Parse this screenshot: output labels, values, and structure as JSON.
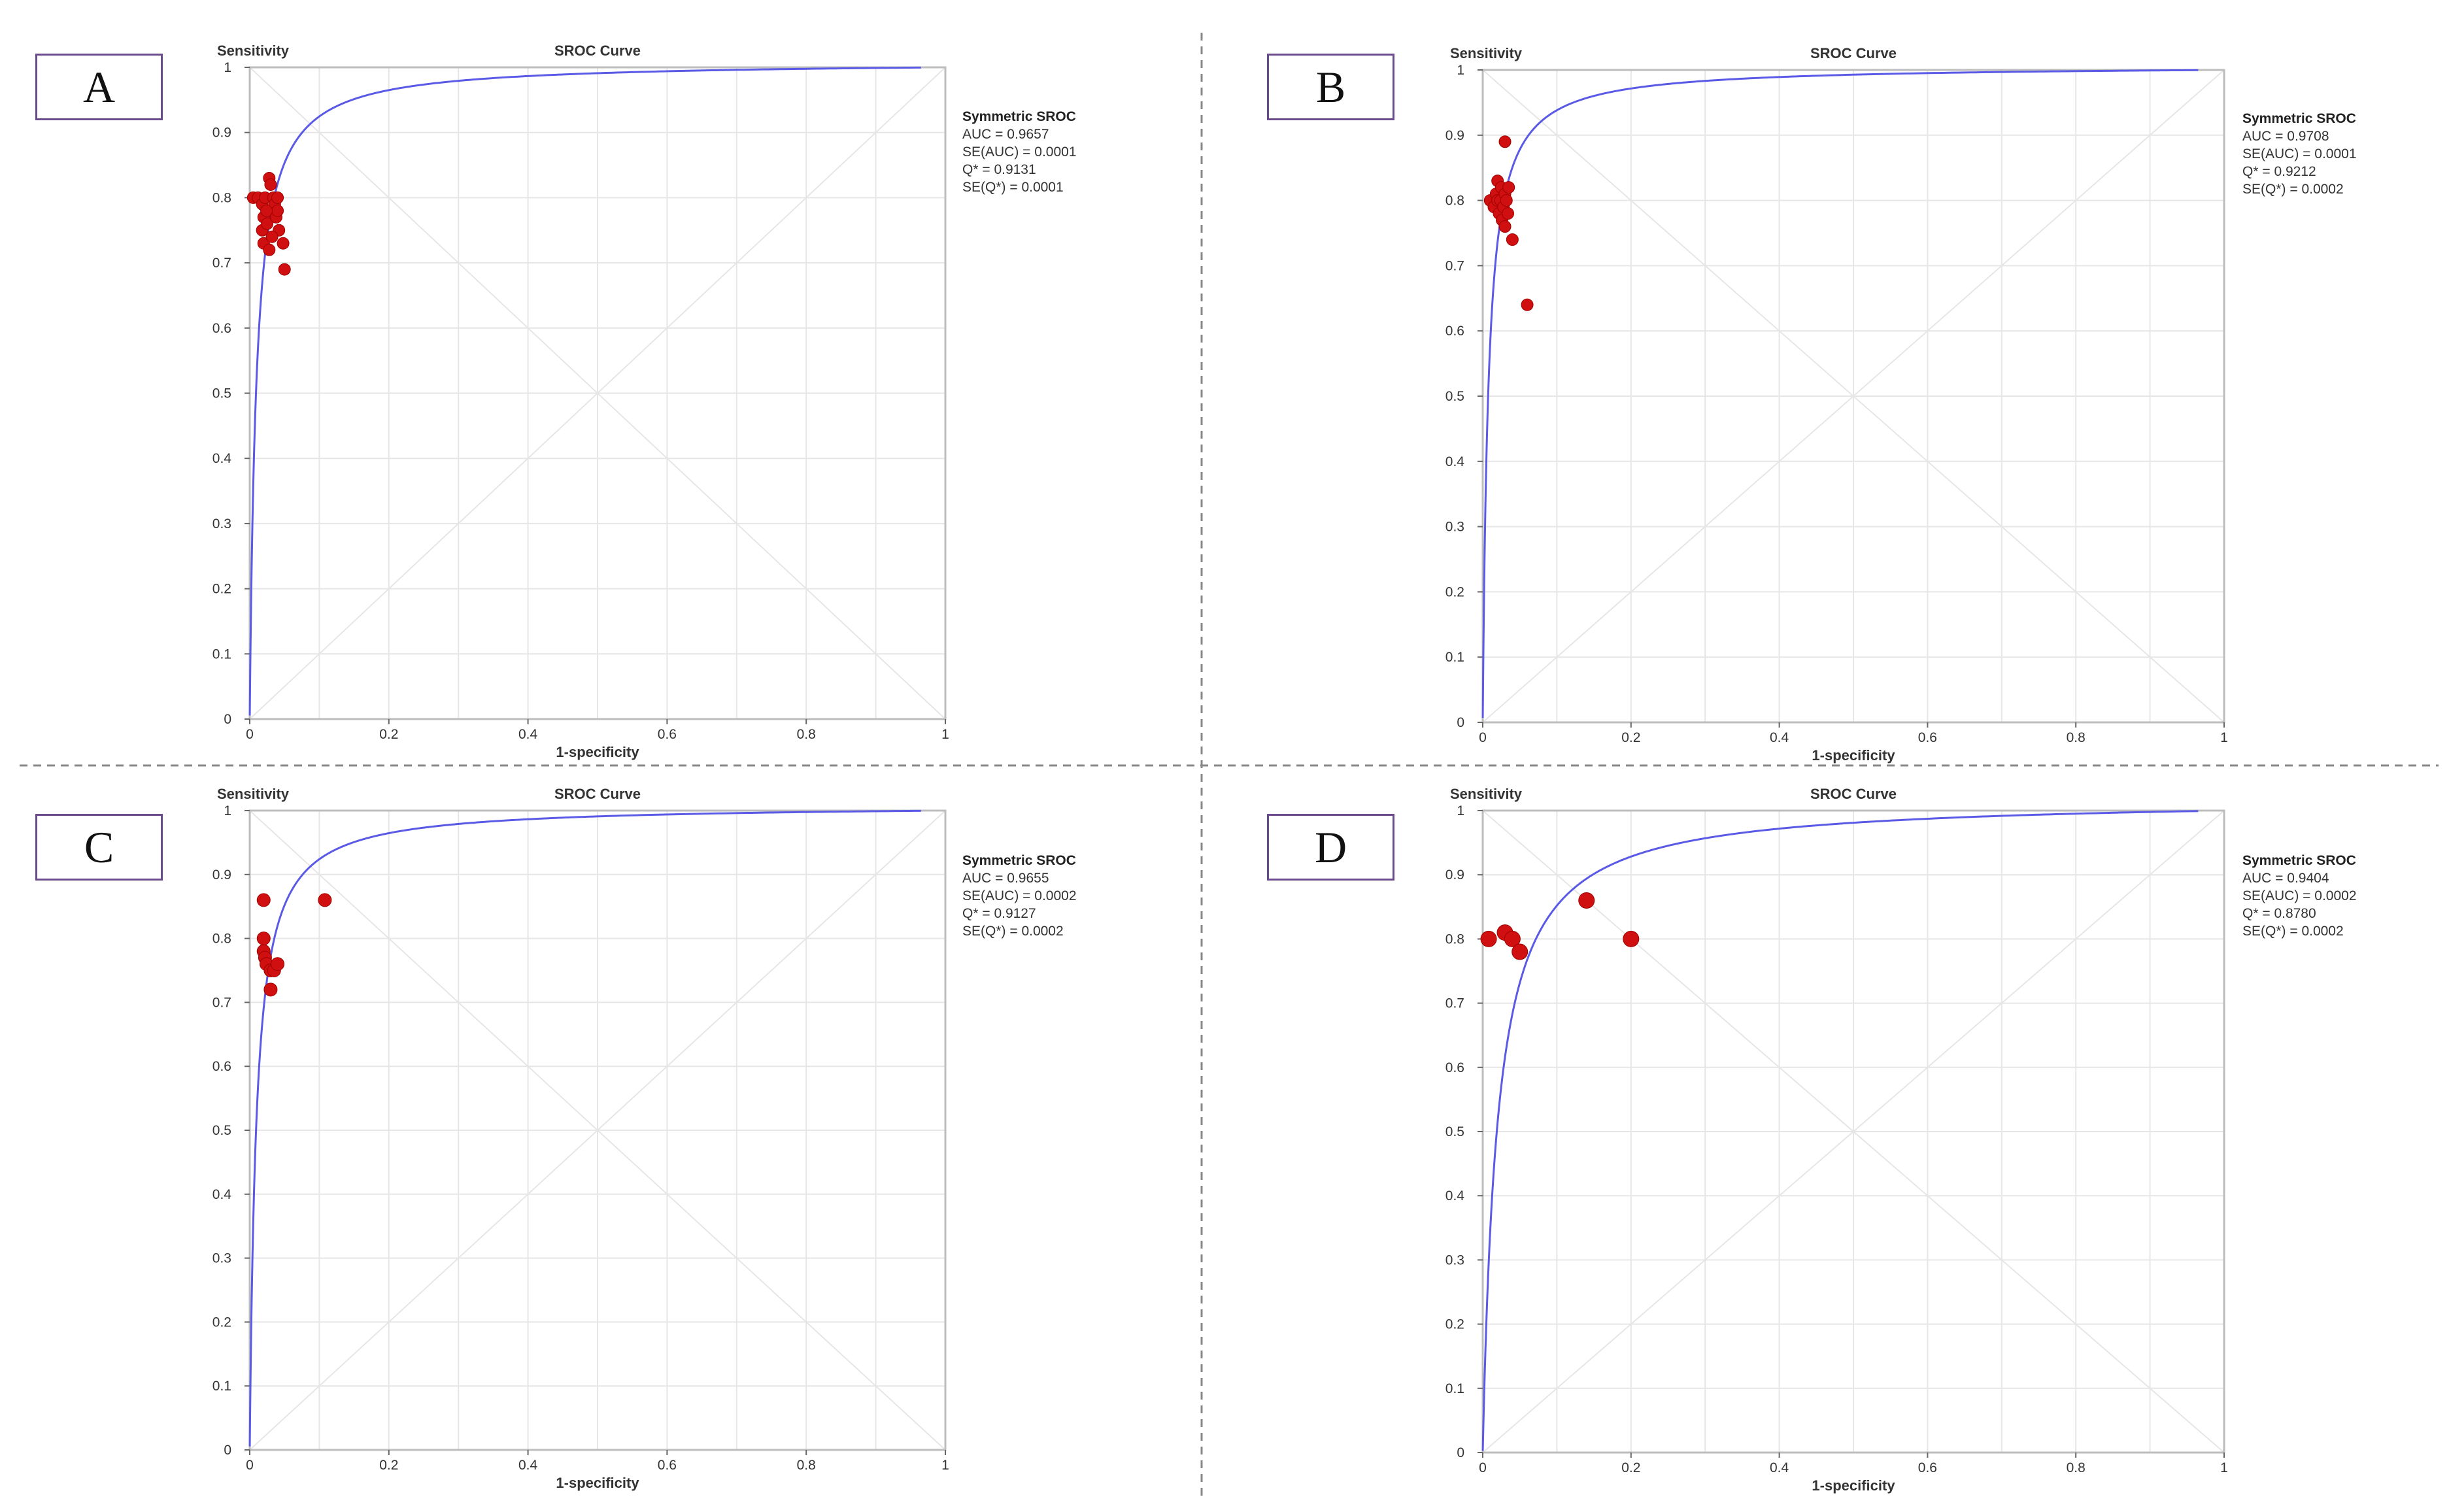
{
  "colors": {
    "curve": "#5a5ae6",
    "points": "#d01010",
    "grid": "#e6e6e6",
    "frame": "#bdbdbd",
    "divider": "#888888",
    "label_border": "#6a4a8c"
  },
  "chart_data": [
    {
      "panel": "A",
      "type": "scatter",
      "title": "SROC Curve",
      "xlabel": "1-specificity",
      "ylabel": "Sensitivity",
      "xlim": [
        0,
        1
      ],
      "ylim": [
        0,
        1
      ],
      "x_ticks": [
        "0",
        "0.2",
        "0.4",
        "0.6",
        "0.8",
        "1"
      ],
      "y_ticks": [
        "0",
        "0.1",
        "0.2",
        "0.3",
        "0.4",
        "0.5",
        "0.6",
        "0.7",
        "0.8",
        "0.9",
        "1"
      ],
      "grid": true,
      "curve_auc": 0.9657,
      "stats_title": "Symmetric SROC",
      "stats": [
        "AUC = 0.9657",
        "SE(AUC) = 0.0001",
        "Q* = 0.9131",
        "SE(Q*) = 0.0001"
      ],
      "points": [
        {
          "x": 0.005,
          "y": 0.8
        },
        {
          "x": 0.012,
          "y": 0.8
        },
        {
          "x": 0.018,
          "y": 0.79
        },
        {
          "x": 0.022,
          "y": 0.8
        },
        {
          "x": 0.02,
          "y": 0.77
        },
        {
          "x": 0.018,
          "y": 0.75
        },
        {
          "x": 0.02,
          "y": 0.73
        },
        {
          "x": 0.025,
          "y": 0.76
        },
        {
          "x": 0.028,
          "y": 0.72
        },
        {
          "x": 0.028,
          "y": 0.83
        },
        {
          "x": 0.03,
          "y": 0.82
        },
        {
          "x": 0.03,
          "y": 0.78
        },
        {
          "x": 0.034,
          "y": 0.8
        },
        {
          "x": 0.036,
          "y": 0.79
        },
        {
          "x": 0.038,
          "y": 0.77
        },
        {
          "x": 0.04,
          "y": 0.8
        },
        {
          "x": 0.04,
          "y": 0.78
        },
        {
          "x": 0.042,
          "y": 0.75
        },
        {
          "x": 0.048,
          "y": 0.73
        },
        {
          "x": 0.05,
          "y": 0.69
        },
        {
          "x": 0.024,
          "y": 0.78
        },
        {
          "x": 0.032,
          "y": 0.74
        }
      ]
    },
    {
      "panel": "B",
      "type": "scatter",
      "title": "SROC Curve",
      "xlabel": "1-specificity",
      "ylabel": "Sensitivity",
      "xlim": [
        0,
        1
      ],
      "ylim": [
        0,
        1
      ],
      "x_ticks": [
        "0",
        "0.2",
        "0.4",
        "0.6",
        "0.8",
        "1"
      ],
      "y_ticks": [
        "0",
        "0.1",
        "0.2",
        "0.3",
        "0.4",
        "0.5",
        "0.6",
        "0.7",
        "0.8",
        "0.9",
        "1"
      ],
      "grid": true,
      "curve_auc": 0.9708,
      "stats_title": "Symmetric SROC",
      "stats": [
        "AUC = 0.9708",
        "SE(AUC) = 0.0001",
        "Q* = 0.9212",
        "SE(Q*) = 0.0002"
      ],
      "points": [
        {
          "x": 0.01,
          "y": 0.8
        },
        {
          "x": 0.015,
          "y": 0.79
        },
        {
          "x": 0.018,
          "y": 0.81
        },
        {
          "x": 0.02,
          "y": 0.8
        },
        {
          "x": 0.02,
          "y": 0.83
        },
        {
          "x": 0.022,
          "y": 0.78
        },
        {
          "x": 0.024,
          "y": 0.8
        },
        {
          "x": 0.025,
          "y": 0.82
        },
        {
          "x": 0.026,
          "y": 0.77
        },
        {
          "x": 0.028,
          "y": 0.79
        },
        {
          "x": 0.03,
          "y": 0.81
        },
        {
          "x": 0.03,
          "y": 0.76
        },
        {
          "x": 0.032,
          "y": 0.8
        },
        {
          "x": 0.034,
          "y": 0.78
        },
        {
          "x": 0.035,
          "y": 0.82
        },
        {
          "x": 0.03,
          "y": 0.89
        },
        {
          "x": 0.04,
          "y": 0.74
        },
        {
          "x": 0.06,
          "y": 0.64
        }
      ]
    },
    {
      "panel": "C",
      "type": "scatter",
      "title": "SROC Curve",
      "xlabel": "1-specificity",
      "ylabel": "Sensitivity",
      "xlim": [
        0,
        1
      ],
      "ylim": [
        0,
        1
      ],
      "x_ticks": [
        "0",
        "0.2",
        "0.4",
        "0.6",
        "0.8",
        "1"
      ],
      "y_ticks": [
        "0",
        "0.1",
        "0.2",
        "0.3",
        "0.4",
        "0.5",
        "0.6",
        "0.7",
        "0.8",
        "0.9",
        "1"
      ],
      "grid": true,
      "curve_auc": 0.9655,
      "stats_title": "Symmetric SROC",
      "stats": [
        "AUC = 0.9655",
        "SE(AUC) = 0.0002",
        "Q* = 0.9127",
        "SE(Q*) = 0.0002"
      ],
      "points": [
        {
          "x": 0.02,
          "y": 0.86
        },
        {
          "x": 0.02,
          "y": 0.8
        },
        {
          "x": 0.02,
          "y": 0.78
        },
        {
          "x": 0.022,
          "y": 0.77
        },
        {
          "x": 0.024,
          "y": 0.76
        },
        {
          "x": 0.03,
          "y": 0.75
        },
        {
          "x": 0.03,
          "y": 0.72
        },
        {
          "x": 0.035,
          "y": 0.75
        },
        {
          "x": 0.04,
          "y": 0.76
        },
        {
          "x": 0.108,
          "y": 0.86
        }
      ]
    },
    {
      "panel": "D",
      "type": "scatter",
      "title": "SROC Curve",
      "xlabel": "1-specificity",
      "ylabel": "Sensitivity",
      "xlim": [
        0,
        1
      ],
      "ylim": [
        0,
        1
      ],
      "x_ticks": [
        "0",
        "0.2",
        "0.4",
        "0.6",
        "0.8",
        "1"
      ],
      "y_ticks": [
        "0",
        "0.1",
        "0.2",
        "0.3",
        "0.4",
        "0.5",
        "0.6",
        "0.7",
        "0.8",
        "0.9",
        "1"
      ],
      "grid": true,
      "curve_auc": 0.9404,
      "stats_title": "Symmetric SROC",
      "stats": [
        "AUC = 0.9404",
        "SE(AUC) = 0.0002",
        "Q* = 0.8780",
        "SE(Q*) = 0.0002"
      ],
      "points": [
        {
          "x": 0.008,
          "y": 0.8
        },
        {
          "x": 0.03,
          "y": 0.81
        },
        {
          "x": 0.04,
          "y": 0.8
        },
        {
          "x": 0.05,
          "y": 0.78
        },
        {
          "x": 0.14,
          "y": 0.86
        },
        {
          "x": 0.2,
          "y": 0.8
        }
      ]
    }
  ]
}
